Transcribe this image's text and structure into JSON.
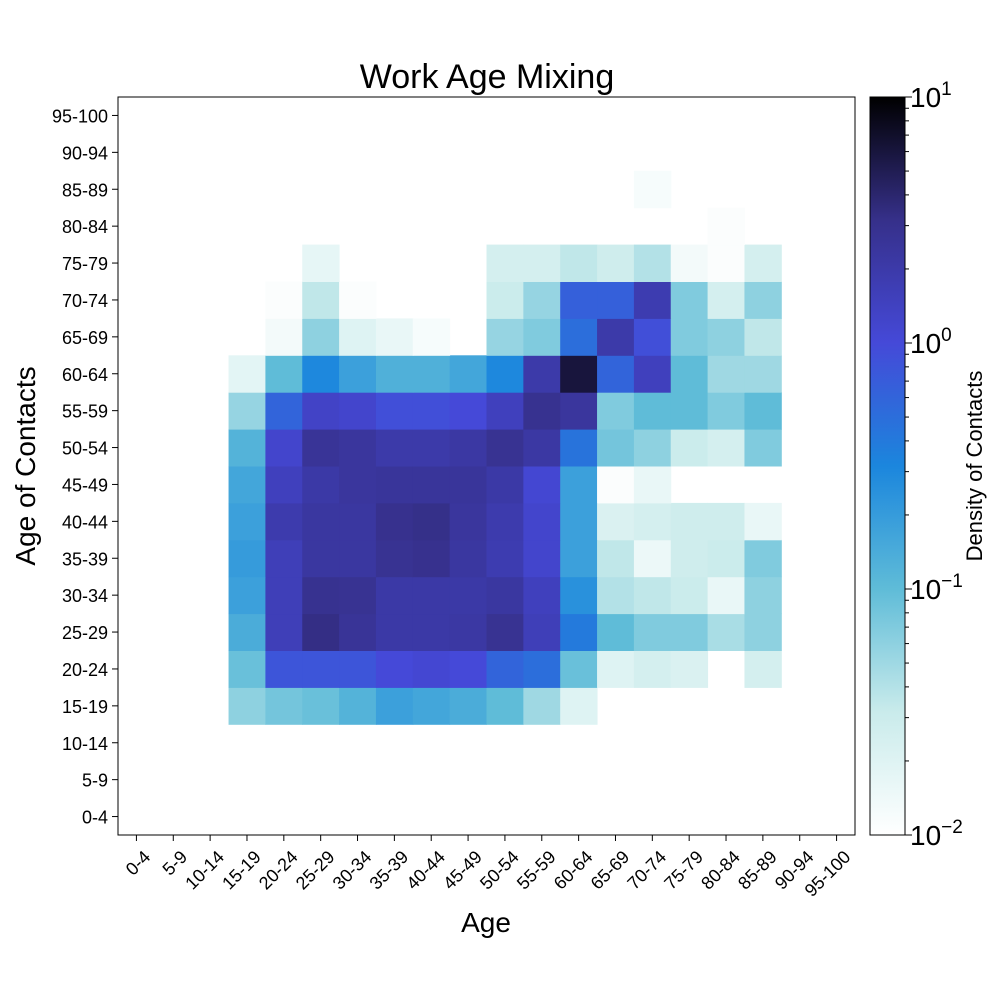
{
  "chart_data": {
    "type": "heatmap",
    "title": "Work Age Mixing",
    "xlabel": "Age",
    "ylabel": "Age of Contacts",
    "x_categories": [
      "0-4",
      "5-9",
      "10-14",
      "15-19",
      "20-24",
      "25-29",
      "30-34",
      "35-39",
      "40-44",
      "45-49",
      "50-54",
      "55-59",
      "60-64",
      "65-69",
      "70-74",
      "75-79",
      "80-84",
      "85-89",
      "90-94",
      "95-100"
    ],
    "y_categories": [
      "0-4",
      "5-9",
      "10-14",
      "15-19",
      "20-24",
      "25-29",
      "30-34",
      "35-39",
      "40-44",
      "45-49",
      "50-54",
      "55-59",
      "60-64",
      "65-69",
      "70-74",
      "75-79",
      "80-84",
      "85-89",
      "90-94",
      "95-100"
    ],
    "colorbar": {
      "label": "Density of Contacts",
      "scale": "log",
      "range": [
        0.01,
        10
      ],
      "tick_bases": [
        "10",
        "10",
        "10",
        "10"
      ],
      "tick_exponents": [
        "−2",
        "−1",
        "0",
        "1"
      ],
      "colors": [
        "#ffffff",
        "#c9ebeb",
        "#5fbcd8",
        "#1b86dd",
        "#4549d8",
        "#36308a",
        "#000000"
      ]
    },
    "values": [
      [
        0,
        0,
        0,
        0,
        0,
        0,
        0,
        0,
        0,
        0,
        0,
        0,
        0,
        0,
        0,
        0,
        0,
        0,
        0,
        0
      ],
      [
        0,
        0,
        0,
        0,
        0,
        0,
        0,
        0,
        0,
        0,
        0,
        0,
        0,
        0,
        0,
        0,
        0,
        0,
        0,
        0
      ],
      [
        0,
        0,
        0,
        0,
        0,
        0,
        0,
        0,
        0,
        0,
        0,
        0,
        0,
        0,
        0,
        0,
        0,
        0,
        0,
        0
      ],
      [
        0,
        0,
        0,
        0.06,
        0.08,
        0.09,
        0.12,
        0.18,
        0.16,
        0.14,
        0.1,
        0.05,
        0.02,
        0,
        0,
        0,
        0,
        0,
        0,
        0
      ],
      [
        0,
        0,
        0,
        0.09,
        0.8,
        0.8,
        0.8,
        1.0,
        1.1,
        1.0,
        0.6,
        0.5,
        0.09,
        0.02,
        0.025,
        0.022,
        0,
        0.025,
        0,
        0
      ],
      [
        0,
        0,
        0,
        0.14,
        1.6,
        3.3,
        2.6,
        2.1,
        2.1,
        2.2,
        2.8,
        1.6,
        0.4,
        0.1,
        0.07,
        0.07,
        0.045,
        0.06,
        0,
        0
      ],
      [
        0,
        0,
        0,
        0.18,
        1.6,
        2.9,
        2.8,
        2.1,
        2.1,
        2.1,
        2.3,
        1.5,
        0.25,
        0.04,
        0.035,
        0.03,
        0.016,
        0.06,
        0,
        0
      ],
      [
        0,
        0,
        0,
        0.2,
        1.6,
        2.3,
        2.3,
        2.8,
        3.0,
        2.3,
        1.8,
        1.2,
        0.18,
        0.035,
        0.015,
        0.028,
        0.03,
        0.07,
        0,
        0
      ],
      [
        0,
        0,
        0,
        0.18,
        1.9,
        2.3,
        2.3,
        3.0,
        3.2,
        2.4,
        1.9,
        1.2,
        0.18,
        0.022,
        0.025,
        0.028,
        0.028,
        0.016,
        0,
        0
      ],
      [
        0,
        0,
        0,
        0.16,
        1.5,
        2.1,
        2.4,
        2.5,
        2.5,
        2.5,
        2.1,
        1.1,
        0.18,
        0.011,
        0.016,
        0,
        0,
        0,
        0,
        0
      ],
      [
        0,
        0,
        0,
        0.12,
        1.2,
        2.6,
        2.4,
        2.0,
        2.0,
        2.2,
        2.8,
        2.2,
        0.45,
        0.08,
        0.06,
        0.03,
        0.025,
        0.07,
        0,
        0
      ],
      [
        0,
        0,
        0,
        0.055,
        0.6,
        1.3,
        1.2,
        0.9,
        0.9,
        1.0,
        1.5,
        2.9,
        2.4,
        0.07,
        0.1,
        0.1,
        0.07,
        0.1,
        0,
        0
      ],
      [
        0,
        0,
        0,
        0.018,
        0.1,
        0.3,
        0.18,
        0.13,
        0.13,
        0.16,
        0.3,
        2.0,
        6.0,
        0.6,
        1.5,
        0.1,
        0.05,
        0.05,
        0,
        0
      ],
      [
        0,
        0,
        0,
        0,
        0.013,
        0.06,
        0.02,
        0.016,
        0.012,
        0,
        0.055,
        0.07,
        0.5,
        2.0,
        0.9,
        0.07,
        0.06,
        0.035,
        0,
        0
      ],
      [
        0,
        0,
        0,
        0,
        0.011,
        0.035,
        0.011,
        0,
        0,
        0,
        0.03,
        0.055,
        0.65,
        0.65,
        1.8,
        0.07,
        0.025,
        0.06,
        0,
        0
      ],
      [
        0,
        0,
        0,
        0,
        0,
        0.017,
        0,
        0,
        0,
        0,
        0.025,
        0.025,
        0.035,
        0.028,
        0.04,
        0.013,
        0.011,
        0.025,
        0,
        0
      ],
      [
        0,
        0,
        0,
        0,
        0,
        0,
        0,
        0,
        0,
        0,
        0,
        0,
        0,
        0,
        0,
        0,
        0.011,
        0,
        0,
        0
      ],
      [
        0,
        0,
        0,
        0,
        0,
        0,
        0,
        0,
        0,
        0,
        0,
        0,
        0,
        0,
        0.012,
        0,
        0,
        0,
        0,
        0
      ],
      [
        0,
        0,
        0,
        0,
        0,
        0,
        0,
        0,
        0,
        0,
        0,
        0,
        0,
        0,
        0,
        0,
        0,
        0,
        0,
        0
      ],
      [
        0,
        0,
        0,
        0,
        0,
        0,
        0,
        0,
        0,
        0,
        0,
        0,
        0,
        0,
        0,
        0,
        0,
        0,
        0,
        0
      ]
    ]
  }
}
